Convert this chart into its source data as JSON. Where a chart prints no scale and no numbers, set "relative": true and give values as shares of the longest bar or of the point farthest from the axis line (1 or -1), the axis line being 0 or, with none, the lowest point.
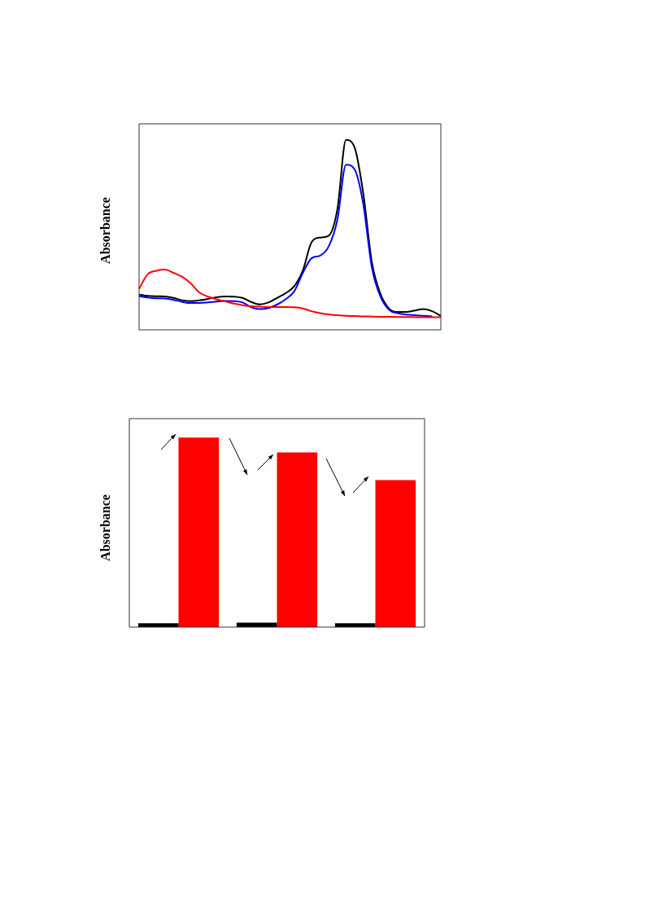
{
  "chart_data": [
    {
      "type": "line",
      "ylabel": "Absorbance",
      "relative": true,
      "categories": [
        null,
        null,
        null,
        null,
        null,
        null,
        null,
        null,
        null,
        null,
        null,
        null,
        null,
        null,
        null,
        null,
        null,
        null,
        null,
        null,
        null,
        null,
        null,
        null,
        null,
        null,
        null,
        null,
        null,
        null,
        null,
        null,
        null,
        null,
        null,
        null
      ],
      "series": [
        {
          "color": "#ff0000",
          "values": [
            0.216,
            0.293,
            0.311,
            0.317,
            0.3,
            0.279,
            0.244,
            0.196,
            0.175,
            0.161,
            0.15,
            0.138,
            0.13,
            0.124,
            0.122,
            0.12,
            0.12,
            0.12,
            0.119,
            0.113,
            0.098,
            0.088,
            0.081,
            0.077,
            0.074,
            0.073,
            0.071,
            0.07,
            0.069,
            0.069,
            0.068,
            0.068,
            0.067,
            0.067,
            0.066,
            0.066
          ]
        },
        {
          "color": "#0000ff",
          "values": [
            0.177,
            0.17,
            0.166,
            0.165,
            0.158,
            0.147,
            0.141,
            0.142,
            0.145,
            0.149,
            0.152,
            0.151,
            0.144,
            0.119,
            0.109,
            0.115,
            0.133,
            0.161,
            0.203,
            0.3,
            0.377,
            0.391,
            0.44,
            0.58,
            0.87,
            0.845,
            0.663,
            0.328,
            0.175,
            0.105,
            0.088,
            0.08,
            0.077,
            0.074,
            0.071,
            null
          ]
        },
        {
          "color": "#000000",
          "values": [
            0.186,
            0.179,
            0.177,
            0.176,
            0.168,
            0.156,
            0.151,
            0.155,
            0.163,
            0.172,
            0.176,
            0.175,
            0.168,
            0.147,
            0.134,
            0.144,
            0.168,
            0.193,
            0.23,
            0.314,
            0.461,
            0.486,
            0.496,
            0.635,
            1.0,
            0.96,
            0.719,
            0.356,
            0.189,
            0.112,
            0.094,
            0.094,
            0.102,
            0.109,
            0.098,
            0.074
          ]
        }
      ]
    },
    {
      "type": "bar",
      "ylabel": "Absorbance",
      "relative": true,
      "categories": [
        null,
        null,
        null
      ],
      "series": [
        {
          "color": "#000000",
          "values": [
            0.02,
            0.024,
            0.02
          ]
        },
        {
          "color": "#ff0000",
          "values": [
            1,
            0.922,
            0.776
          ]
        }
      ]
    }
  ]
}
